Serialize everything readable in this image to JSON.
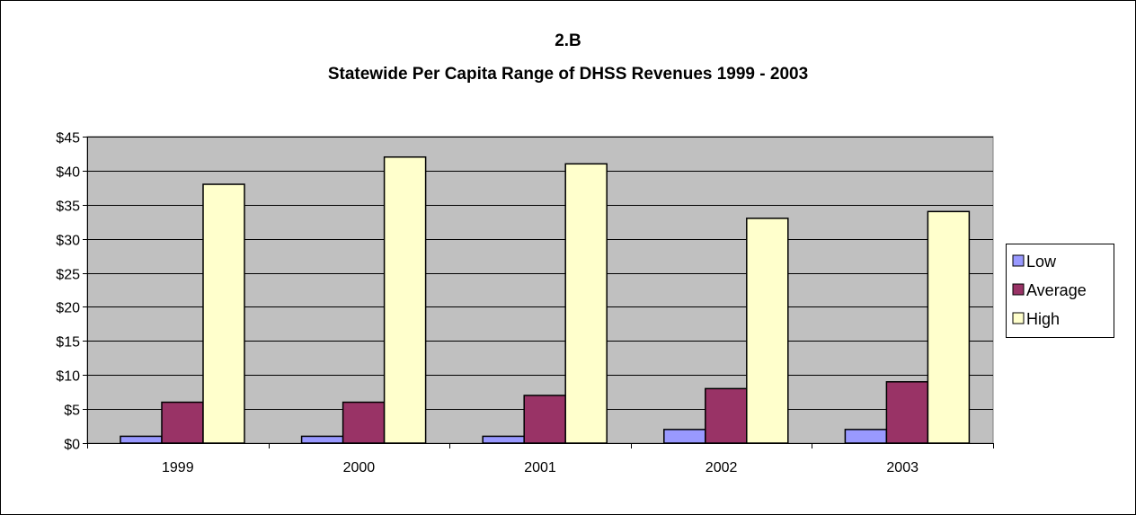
{
  "chart_data": {
    "type": "bar",
    "title": "2.B",
    "subtitle": "Statewide Per Capita Range of DHSS Revenues 1999 - 2003",
    "xlabel": "",
    "ylabel": "",
    "categories": [
      "1999",
      "2000",
      "2001",
      "2002",
      "2003"
    ],
    "series": [
      {
        "name": "Low",
        "color": "#9999ff",
        "values": [
          1,
          1,
          1,
          2,
          2
        ]
      },
      {
        "name": "Average",
        "color": "#993366",
        "values": [
          6,
          6,
          7,
          8,
          9
        ]
      },
      {
        "name": "High",
        "color": "#ffffcc",
        "values": [
          38,
          42,
          41,
          33,
          34
        ]
      }
    ],
    "ylim": [
      0,
      45
    ],
    "yticks": [
      0,
      5,
      10,
      15,
      20,
      25,
      30,
      35,
      40,
      45
    ],
    "ytick_labels": [
      "$0",
      "$5",
      "$10",
      "$15",
      "$20",
      "$25",
      "$30",
      "$35",
      "$40",
      "$45"
    ],
    "plot_background": "#c0c0c0",
    "grid": true,
    "legend_position": "right"
  }
}
